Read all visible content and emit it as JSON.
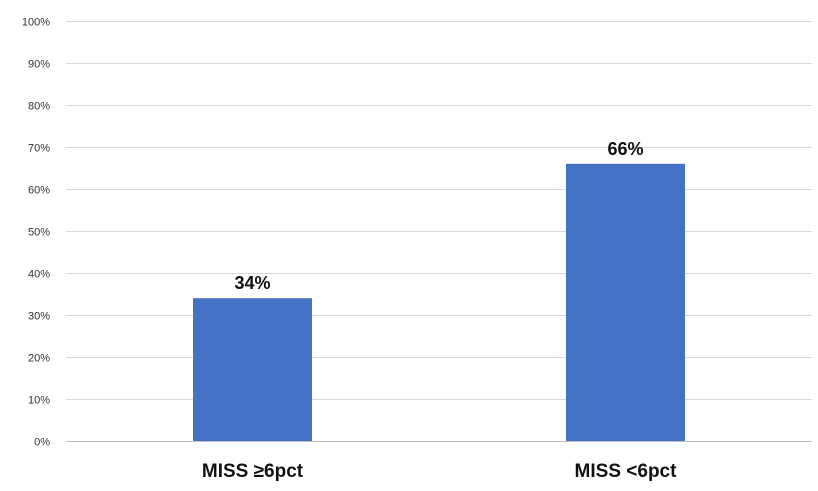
{
  "chart_data": {
    "type": "bar",
    "categories": [
      "MISS ≥6pct",
      "MISS <6pct"
    ],
    "values": [
      34,
      66
    ],
    "data_labels": [
      "34%",
      "66%"
    ],
    "title": "",
    "xlabel": "",
    "ylabel": "",
    "ylim": [
      0,
      100
    ],
    "y_ticks": [
      0,
      10,
      20,
      30,
      40,
      50,
      60,
      70,
      80,
      90,
      100
    ],
    "y_tick_labels": [
      "0%",
      "10%",
      "20%",
      "30%",
      "40%",
      "50%",
      "60%",
      "70%",
      "80%",
      "90%",
      "100%"
    ],
    "grid": true,
    "legend": "none",
    "bar_color": "#4472c4"
  }
}
